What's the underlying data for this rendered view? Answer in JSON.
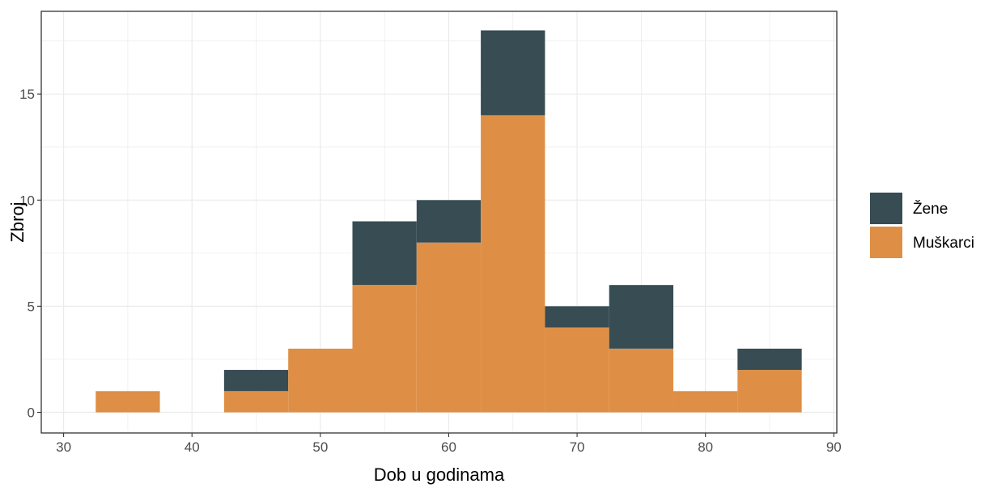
{
  "chart_data": {
    "type": "bar",
    "subtype": "stacked-histogram",
    "bin_width": 5,
    "bin_centers": [
      35,
      45,
      50,
      55,
      60,
      65,
      70,
      75,
      80,
      85
    ],
    "series": [
      {
        "name": "Muškarci",
        "color": "#de8f45",
        "values": [
          1,
          1,
          3,
          6,
          8,
          14,
          4,
          3,
          1,
          2
        ]
      },
      {
        "name": "Žene",
        "color": "#374c53",
        "values": [
          0,
          1,
          0,
          3,
          2,
          4,
          1,
          3,
          0,
          1
        ]
      }
    ],
    "xlabel": "Dob u godinama",
    "ylabel": "Zbroj",
    "xlim": [
      30,
      90
    ],
    "ylim": [
      0,
      18
    ],
    "x_ticks": [
      "30",
      "40",
      "50",
      "60",
      "70",
      "80",
      "90"
    ],
    "y_ticks": [
      "0",
      "5",
      "10",
      "15"
    ],
    "grid": true,
    "legend_position": "right",
    "legend": [
      "Žene",
      "Muškarci"
    ]
  }
}
